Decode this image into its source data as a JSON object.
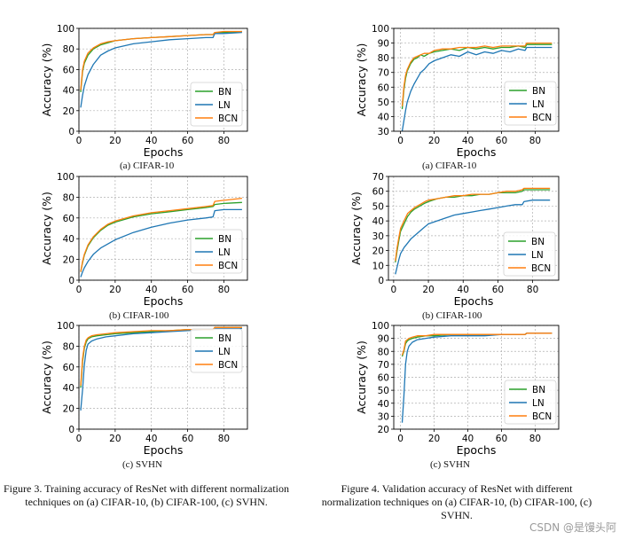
{
  "chart_data": [
    {
      "id": "train-cifar10",
      "type": "line",
      "subcaption": "(a) CIFAR-10",
      "xlabel": "Epochs",
      "ylabel": "Accuracy (%)",
      "xlim": [
        0,
        93
      ],
      "ylim": [
        0,
        100
      ],
      "xticks": [
        0,
        20,
        40,
        60,
        80
      ],
      "yticks": [
        0,
        20,
        40,
        60,
        80,
        100
      ],
      "grid": true,
      "legend_position": "lower-right",
      "series": [
        {
          "name": "BN",
          "color": "#2ca02c",
          "x": [
            1,
            2,
            3,
            5,
            8,
            12,
            16,
            20,
            30,
            40,
            50,
            60,
            70,
            74,
            75,
            80,
            90
          ],
          "y": [
            38,
            58,
            66,
            74,
            80,
            84,
            86,
            88,
            90,
            91,
            92,
            93,
            94,
            94,
            96,
            96,
            97
          ]
        },
        {
          "name": "LN",
          "color": "#1f77b4",
          "x": [
            1,
            2,
            3,
            5,
            8,
            12,
            16,
            20,
            30,
            40,
            50,
            60,
            70,
            74,
            75,
            80,
            90
          ],
          "y": [
            23,
            35,
            44,
            55,
            65,
            74,
            78,
            81,
            85,
            87,
            89,
            90,
            91,
            91,
            95,
            95,
            96
          ]
        },
        {
          "name": "BCN",
          "color": "#ff7f0e",
          "x": [
            1,
            2,
            3,
            5,
            8,
            12,
            16,
            20,
            30,
            40,
            50,
            60,
            70,
            74,
            75,
            80,
            90
          ],
          "y": [
            40,
            60,
            68,
            76,
            81,
            85,
            87,
            88,
            90,
            91,
            92,
            93,
            94,
            94,
            96,
            97,
            97
          ]
        }
      ]
    },
    {
      "id": "val-cifar10",
      "type": "line",
      "subcaption": "(a) CIFAR-10",
      "xlabel": "Epochs",
      "ylabel": "Accuracy (%)",
      "xlim": [
        -4,
        94
      ],
      "ylim": [
        30,
        100
      ],
      "xticks": [
        0,
        20,
        40,
        60,
        80
      ],
      "yticks": [
        30,
        40,
        50,
        60,
        70,
        80,
        90,
        100
      ],
      "grid": true,
      "legend_position": "lower-right",
      "series": [
        {
          "name": "BN",
          "color": "#2ca02c",
          "x": [
            1,
            2,
            3,
            4,
            6,
            8,
            10,
            12,
            14,
            17,
            20,
            25,
            30,
            35,
            40,
            45,
            50,
            55,
            60,
            65,
            70,
            74,
            75,
            80,
            90
          ],
          "y": [
            45,
            58,
            66,
            71,
            76,
            79,
            80,
            82,
            81,
            83,
            84,
            85,
            86,
            85,
            87,
            86,
            87,
            86,
            87,
            87,
            88,
            87,
            89,
            89,
            89
          ]
        },
        {
          "name": "LN",
          "color": "#1f77b4",
          "x": [
            1,
            2,
            3,
            4,
            6,
            8,
            10,
            12,
            14,
            17,
            20,
            25,
            30,
            35,
            40,
            45,
            50,
            55,
            60,
            65,
            70,
            74,
            75,
            80,
            90
          ],
          "y": [
            30,
            37,
            44,
            50,
            57,
            62,
            66,
            70,
            72,
            76,
            78,
            80,
            82,
            81,
            84,
            82,
            84,
            83,
            85,
            84,
            86,
            85,
            87,
            87,
            87
          ]
        },
        {
          "name": "BCN",
          "color": "#ff7f0e",
          "x": [
            1,
            2,
            3,
            4,
            6,
            8,
            10,
            12,
            14,
            17,
            20,
            25,
            30,
            35,
            40,
            45,
            50,
            55,
            60,
            65,
            70,
            74,
            75,
            80,
            90
          ],
          "y": [
            47,
            60,
            68,
            72,
            77,
            80,
            81,
            82,
            83,
            83,
            85,
            86,
            86,
            87,
            87,
            87,
            88,
            87,
            88,
            88,
            88,
            88,
            90,
            90,
            90
          ]
        }
      ]
    },
    {
      "id": "train-cifar100",
      "type": "line",
      "subcaption": "(b) CIFAR-100",
      "xlabel": "Epochs",
      "ylabel": "Accuracy (%)",
      "xlim": [
        0,
        93
      ],
      "ylim": [
        0,
        100
      ],
      "xticks": [
        0,
        20,
        40,
        60,
        80
      ],
      "yticks": [
        0,
        20,
        40,
        60,
        80,
        100
      ],
      "grid": true,
      "legend_position": "lower-right",
      "series": [
        {
          "name": "BN",
          "color": "#2ca02c",
          "x": [
            1,
            2,
            3,
            5,
            8,
            12,
            16,
            20,
            30,
            40,
            50,
            60,
            70,
            74,
            75,
            80,
            90
          ],
          "y": [
            8,
            17,
            24,
            33,
            41,
            48,
            53,
            56,
            61,
            64,
            66,
            68,
            70,
            71,
            73,
            74,
            75
          ]
        },
        {
          "name": "LN",
          "color": "#1f77b4",
          "x": [
            1,
            2,
            3,
            5,
            8,
            12,
            16,
            20,
            30,
            40,
            50,
            60,
            70,
            74,
            75,
            80,
            90
          ],
          "y": [
            3,
            8,
            12,
            18,
            25,
            31,
            35,
            39,
            46,
            51,
            55,
            58,
            60,
            61,
            67,
            68,
            68
          ]
        },
        {
          "name": "BCN",
          "color": "#ff7f0e",
          "x": [
            1,
            2,
            3,
            5,
            8,
            12,
            16,
            20,
            30,
            40,
            50,
            60,
            70,
            74,
            75,
            80,
            90
          ],
          "y": [
            8,
            18,
            25,
            34,
            42,
            49,
            54,
            57,
            62,
            65,
            67,
            69,
            71,
            72,
            76,
            77,
            79
          ]
        }
      ]
    },
    {
      "id": "val-cifar100",
      "type": "line",
      "subcaption": "(b) CIFAR-100",
      "xlabel": "Epochs",
      "ylabel": "Accuracy (%)",
      "xlim": [
        -3,
        95
      ],
      "ylim": [
        0,
        70
      ],
      "xticks": [
        0,
        20,
        40,
        60,
        80
      ],
      "yticks": [
        0,
        10,
        20,
        30,
        40,
        50,
        60,
        70
      ],
      "grid": true,
      "legend_position": "lower-right",
      "series": [
        {
          "name": "BN",
          "color": "#2ca02c",
          "x": [
            1,
            2,
            3,
            4,
            6,
            8,
            10,
            12,
            15,
            18,
            20,
            25,
            30,
            35,
            40,
            45,
            50,
            55,
            60,
            65,
            70,
            74,
            75,
            80,
            90
          ],
          "y": [
            12,
            20,
            27,
            33,
            38,
            43,
            46,
            48,
            50,
            52,
            53,
            55,
            56,
            56,
            57,
            57,
            58,
            58,
            59,
            59,
            59,
            60,
            61,
            61,
            61
          ]
        },
        {
          "name": "LN",
          "color": "#1f77b4",
          "x": [
            1,
            2,
            3,
            4,
            6,
            8,
            10,
            12,
            15,
            18,
            20,
            25,
            30,
            35,
            40,
            45,
            50,
            55,
            60,
            65,
            70,
            74,
            75,
            80,
            90
          ],
          "y": [
            4,
            9,
            14,
            18,
            22,
            25,
            28,
            30,
            33,
            36,
            38,
            40,
            42,
            44,
            45,
            46,
            47,
            48,
            49,
            50,
            51,
            51,
            53,
            54,
            54
          ]
        },
        {
          "name": "BCN",
          "color": "#ff7f0e",
          "x": [
            1,
            2,
            3,
            4,
            6,
            8,
            10,
            12,
            15,
            18,
            20,
            25,
            30,
            35,
            40,
            45,
            50,
            55,
            60,
            65,
            70,
            74,
            75,
            80,
            90
          ],
          "y": [
            13,
            22,
            29,
            35,
            40,
            45,
            47,
            49,
            51,
            53,
            54,
            55,
            56,
            57,
            57,
            58,
            58,
            58,
            59,
            60,
            60,
            61,
            62,
            62,
            62
          ]
        }
      ]
    },
    {
      "id": "train-svhn",
      "type": "line",
      "subcaption": "(c) SVHN",
      "xlabel": "Epochs",
      "ylabel": "Accuracy (%)",
      "xlim": [
        0,
        93
      ],
      "ylim": [
        0,
        100
      ],
      "xticks": [
        0,
        20,
        40,
        60,
        80
      ],
      "yticks": [
        0,
        20,
        40,
        60,
        80,
        100
      ],
      "grid": true,
      "legend_position": "right",
      "series": [
        {
          "name": "BN",
          "color": "#2ca02c",
          "x": [
            1,
            2,
            3,
            4,
            5,
            7,
            10,
            15,
            20,
            30,
            40,
            50,
            60,
            70,
            74,
            75,
            80,
            90
          ],
          "y": [
            40,
            65,
            78,
            84,
            87,
            89,
            90,
            91,
            92,
            93,
            94,
            95,
            96,
            96,
            96,
            98,
            98,
            98
          ]
        },
        {
          "name": "LN",
          "color": "#1f77b4",
          "x": [
            1,
            2,
            3,
            4,
            5,
            7,
            10,
            15,
            20,
            30,
            40,
            50,
            60,
            70,
            74,
            75,
            80,
            90
          ],
          "y": [
            18,
            38,
            62,
            76,
            82,
            85,
            87,
            89,
            90,
            92,
            93,
            94,
            95,
            96,
            96,
            97,
            97,
            97
          ]
        },
        {
          "name": "BCN",
          "color": "#ff7f0e",
          "x": [
            1,
            2,
            3,
            4,
            5,
            7,
            10,
            15,
            20,
            30,
            40,
            50,
            60,
            70,
            74,
            75,
            80,
            90
          ],
          "y": [
            42,
            68,
            80,
            86,
            88,
            90,
            91,
            92,
            93,
            94,
            95,
            95,
            96,
            96,
            96,
            98,
            98,
            98
          ]
        }
      ]
    },
    {
      "id": "val-svhn",
      "type": "line",
      "subcaption": "(c) SVHN",
      "xlabel": "Epochs",
      "ylabel": "Accuracy (%)",
      "xlim": [
        -4,
        94
      ],
      "ylim": [
        20,
        100
      ],
      "xticks": [
        0,
        20,
        40,
        60,
        80
      ],
      "yticks": [
        20,
        30,
        40,
        50,
        60,
        70,
        80,
        90,
        100
      ],
      "grid": true,
      "legend_position": "lower-right",
      "series": [
        {
          "name": "BN",
          "color": "#2ca02c",
          "x": [
            1,
            2,
            3,
            4,
            5,
            7,
            10,
            15,
            20,
            30,
            40,
            50,
            60,
            70,
            74,
            75,
            80,
            90
          ],
          "y": [
            76,
            80,
            86,
            88,
            89,
            90,
            91,
            92,
            92,
            93,
            93,
            93,
            93,
            93,
            93,
            94,
            94,
            94
          ]
        },
        {
          "name": "LN",
          "color": "#1f77b4",
          "x": [
            1,
            2,
            3,
            4,
            5,
            7,
            10,
            15,
            20,
            30,
            40,
            50,
            60,
            70,
            74,
            75,
            80,
            90
          ],
          "y": [
            25,
            45,
            70,
            80,
            84,
            87,
            89,
            90,
            91,
            92,
            92,
            92,
            93,
            93,
            93,
            94,
            94,
            94
          ]
        },
        {
          "name": "BCN",
          "color": "#ff7f0e",
          "x": [
            1,
            2,
            3,
            4,
            5,
            7,
            10,
            15,
            20,
            30,
            40,
            50,
            60,
            70,
            74,
            75,
            80,
            90
          ],
          "y": [
            77,
            81,
            88,
            89,
            90,
            91,
            92,
            92,
            93,
            93,
            93,
            93,
            93,
            93,
            93,
            94,
            94,
            94
          ]
        }
      ]
    }
  ],
  "captions": {
    "fig3": "Figure 3. Training accuracy of ResNet with different normalization techniques on (a) CIFAR-10, (b) CIFAR-100, (c) SVHN.",
    "fig4": "Figure 4. Validation accuracy of ResNet with different normalization techniques on (a) CIFAR-10, (b) CIFAR-100, (c) SVHN."
  },
  "watermark": "CSDN @是馒头阿"
}
